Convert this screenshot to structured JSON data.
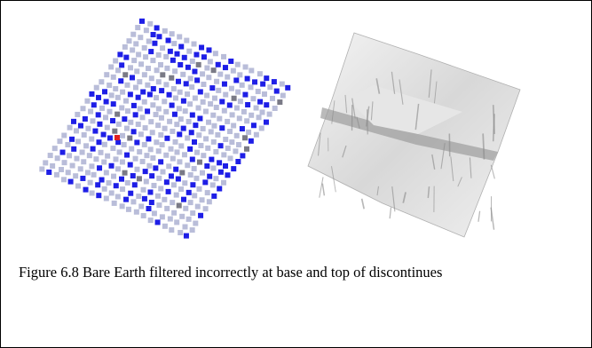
{
  "figure": {
    "caption": "Figure 6.8 Bare Earth filtered incorrectly at base and top of discontinues"
  }
}
